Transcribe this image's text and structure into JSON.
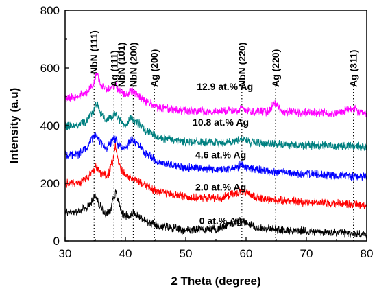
{
  "chart_data": {
    "type": "line",
    "xlabel": "2 Theta (degree)",
    "ylabel": "Intensity (a.u)",
    "xlim": [
      30,
      80
    ],
    "ylim": [
      0,
      800
    ],
    "xticks": [
      30,
      40,
      50,
      60,
      70,
      80
    ],
    "yticks": [
      0,
      200,
      400,
      600,
      800
    ],
    "grid": false,
    "legend": "none",
    "reference_lines": [
      {
        "label": "NbN (111)",
        "x": 34.8
      },
      {
        "label": "Ag (111)",
        "x": 38.1
      },
      {
        "label": "NbN (101)",
        "x": 39.3
      },
      {
        "label": "NbN (200)",
        "x": 41.3
      },
      {
        "label": "Ag (200)",
        "x": 44.8
      },
      {
        "label": "NbN (220)",
        "x": 59.3
      },
      {
        "label": "Ag (220)",
        "x": 64.9
      },
      {
        "label": "Ag (311)",
        "x": 77.8
      }
    ],
    "series": [
      {
        "name": "0 at.% Ag",
        "color": "#000000",
        "x": [
          30,
          32,
          33.5,
          34.3,
          35,
          35.8,
          36.8,
          37.5,
          38,
          38.4,
          38.8,
          39.5,
          40.5,
          41.3,
          42.5,
          44,
          46,
          50,
          55,
          57.5,
          59,
          60.5,
          62,
          66,
          70,
          75,
          80
        ],
        "values": [
          100,
          100,
          112,
          135,
          155,
          120,
          95,
          105,
          150,
          165,
          140,
          95,
          85,
          98,
          80,
          60,
          50,
          38,
          42,
          60,
          72,
          60,
          45,
          38,
          33,
          28,
          22
        ]
      },
      {
        "name": "2.0 at.% Ag",
        "color": "#ff0000",
        "x": [
          30,
          32,
          33.5,
          34.5,
          35.2,
          36,
          37,
          37.8,
          38.3,
          38.8,
          39.5,
          40.5,
          41.5,
          43,
          45,
          48,
          52,
          56,
          58,
          59.2,
          60.5,
          63,
          66,
          70,
          75,
          80
        ],
        "values": [
          200,
          200,
          215,
          240,
          255,
          235,
          225,
          270,
          330,
          280,
          240,
          220,
          215,
          195,
          175,
          160,
          148,
          150,
          162,
          172,
          160,
          145,
          140,
          135,
          130,
          125
        ]
      },
      {
        "name": "4.6 at.% Ag",
        "color": "#0000ff",
        "x": [
          30,
          32,
          33.5,
          34.5,
          35.2,
          36,
          36.8,
          37.5,
          38.2,
          39,
          40,
          41,
          42,
          43.5,
          46,
          50,
          55,
          58,
          59.3,
          61,
          65,
          70,
          75,
          80
        ],
        "values": [
          298,
          300,
          320,
          355,
          365,
          340,
          320,
          340,
          355,
          330,
          320,
          350,
          335,
          300,
          270,
          255,
          248,
          252,
          262,
          248,
          238,
          232,
          228,
          223
        ]
      },
      {
        "name": "10.8 at.% Ag",
        "color": "#008080",
        "x": [
          30,
          32,
          33.5,
          34.5,
          35.2,
          36,
          36.8,
          37.5,
          38.3,
          39,
          40,
          41,
          42,
          43.5,
          46,
          50,
          55,
          58,
          59.3,
          61,
          65,
          70,
          75,
          80
        ],
        "values": [
          397,
          400,
          415,
          445,
          475,
          440,
          420,
          430,
          440,
          420,
          405,
          425,
          410,
          380,
          355,
          345,
          340,
          345,
          355,
          342,
          335,
          332,
          330,
          328
        ]
      },
      {
        "name": "12.9 at.% Ag",
        "color": "#ff00ff",
        "x": [
          30,
          32,
          33.5,
          34.5,
          35.3,
          36,
          36.8,
          37.5,
          38.3,
          39,
          40,
          41,
          42,
          43.5,
          46,
          50,
          55,
          58,
          59.3,
          61,
          63.5,
          64.9,
          66,
          70,
          75,
          77.8,
          79,
          80
        ],
        "values": [
          495,
          500,
          515,
          540,
          575,
          540,
          525,
          530,
          540,
          520,
          505,
          520,
          505,
          480,
          460,
          450,
          448,
          452,
          460,
          450,
          448,
          478,
          448,
          445,
          443,
          458,
          442,
          440
        ]
      }
    ],
    "annotations": {
      "peak_labels": [
        "NbN (111)",
        "Ag (111)",
        "NbN (101)",
        "NbN (200)",
        "Ag (200)",
        "NbN (220)",
        "Ag (220)",
        "Ag (311)"
      ],
      "sample_labels": [
        "12.9 at.% Ag",
        "10.8 at.% Ag",
        "4.6 at.% Ag",
        "2.0 at.% Ag",
        "0 at.% Ag"
      ]
    }
  }
}
